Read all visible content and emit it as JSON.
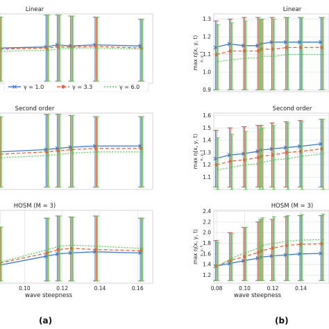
{
  "chart_data": [
    {
      "id": "a-linear",
      "type": "line",
      "title": "Linear",
      "xlim": [
        0.087,
        0.168
      ],
      "ylim": [
        0.7,
        1.35
      ],
      "xticks": [],
      "yticks": [],
      "ylabel": "",
      "xlabel": "",
      "x": [
        0.087,
        0.112,
        0.118,
        0.125,
        0.138,
        0.162
      ],
      "series": [
        {
          "name": "γ = 1.0",
          "color": "#3a78c9",
          "marker": "x",
          "dash": "",
          "values": [
            1.03,
            1.04,
            1.06,
            1.05,
            1.06,
            1.05
          ],
          "err": [
            [
              0.72,
              1.32
            ],
            [
              0.72,
              1.34
            ],
            [
              0.72,
              1.34
            ],
            [
              0.72,
              1.33
            ],
            [
              0.72,
              1.32
            ],
            [
              0.72,
              1.3
            ]
          ]
        },
        {
          "name": "γ = 3.3",
          "color": "#e8603c",
          "marker": "o",
          "dash": "5,3",
          "values": [
            1.02,
            1.03,
            1.04,
            1.04,
            1.045,
            1.03
          ],
          "err": [
            [
              0.72,
              1.32
            ],
            [
              0.72,
              1.34
            ],
            [
              0.72,
              1.34
            ],
            [
              0.72,
              1.33
            ],
            [
              0.72,
              1.32
            ],
            [
              0.72,
              1.3
            ]
          ]
        },
        {
          "name": "γ = 6.0",
          "color": "#5cc85a",
          "marker": "",
          "dash": "2,2",
          "values": [
            1.0,
            1.01,
            1.02,
            1.03,
            1.03,
            1.02
          ],
          "err": [
            [
              0.72,
              1.32
            ],
            [
              0.72,
              1.34
            ],
            [
              0.72,
              1.34
            ],
            [
              0.72,
              1.33
            ],
            [
              0.72,
              1.32
            ],
            [
              0.72,
              1.3
            ]
          ]
        }
      ]
    },
    {
      "id": "a-second",
      "type": "line",
      "title": "Second order",
      "xlim": [
        0.087,
        0.168
      ],
      "ylim": [
        0.7,
        1.35
      ],
      "xticks": [],
      "yticks": [],
      "ylabel": "",
      "xlabel": "",
      "x": [
        0.087,
        0.112,
        0.118,
        0.125,
        0.138,
        0.162
      ],
      "series": [
        {
          "name": "γ = 1.0",
          "color": "#3a78c9",
          "marker": "x",
          "dash": "",
          "values": [
            1.02,
            1.04,
            1.05,
            1.06,
            1.07,
            1.07
          ],
          "err": [
            [
              0.72,
              1.32
            ],
            [
              0.72,
              1.34
            ],
            [
              0.72,
              1.34
            ],
            [
              0.72,
              1.33
            ],
            [
              0.72,
              1.32
            ],
            [
              0.72,
              1.32
            ]
          ]
        },
        {
          "name": "γ = 3.3",
          "color": "#e8603c",
          "marker": "o",
          "dash": "5,3",
          "values": [
            1.0,
            1.02,
            1.03,
            1.04,
            1.05,
            1.05
          ],
          "err": [
            [
              0.72,
              1.32
            ],
            [
              0.72,
              1.34
            ],
            [
              0.72,
              1.34
            ],
            [
              0.72,
              1.33
            ],
            [
              0.72,
              1.32
            ],
            [
              0.72,
              1.32
            ]
          ]
        },
        {
          "name": "γ = 6.0",
          "color": "#5cc85a",
          "marker": "",
          "dash": "2,2",
          "values": [
            0.97,
            0.99,
            1.0,
            1.01,
            1.02,
            1.02
          ],
          "err": [
            [
              0.72,
              1.32
            ],
            [
              0.72,
              1.34
            ],
            [
              0.72,
              1.34
            ],
            [
              0.72,
              1.33
            ],
            [
              0.72,
              1.32
            ],
            [
              0.72,
              1.32
            ]
          ]
        }
      ]
    },
    {
      "id": "a-hosm",
      "type": "line",
      "title": "HOSM (M = 3)",
      "xlim": [
        0.087,
        0.168
      ],
      "ylim": [
        0.7,
        1.35
      ],
      "xticks": [
        0.1,
        0.12,
        0.14,
        0.16
      ],
      "yticks": [],
      "ylabel": "",
      "xlabel": "wave steepness",
      "x": [
        0.087,
        0.112,
        0.118,
        0.125,
        0.138,
        0.162
      ],
      "series": [
        {
          "name": "γ = 1.0",
          "color": "#3a78c9",
          "marker": "x",
          "dash": "",
          "values": [
            0.86,
            0.94,
            0.96,
            0.97,
            0.98,
            0.97
          ],
          "err": [
            [
              0.72,
              1.2
            ],
            [
              0.72,
              1.28
            ],
            [
              0.72,
              1.3
            ],
            [
              0.72,
              1.29
            ],
            [
              0.72,
              1.3
            ],
            [
              0.72,
              1.28
            ]
          ]
        },
        {
          "name": "γ = 3.3",
          "color": "#e8603c",
          "marker": "o",
          "dash": "5,3",
          "values": [
            0.88,
            0.97,
            1.0,
            1.01,
            1.0,
            0.99
          ],
          "err": [
            [
              0.72,
              1.2
            ],
            [
              0.72,
              1.28
            ],
            [
              0.72,
              1.3
            ],
            [
              0.72,
              1.29
            ],
            [
              0.72,
              1.3
            ],
            [
              0.72,
              1.28
            ]
          ]
        },
        {
          "name": "γ = 6.0",
          "color": "#5cc85a",
          "marker": "",
          "dash": "2,2",
          "values": [
            0.89,
            1.0,
            1.03,
            1.04,
            1.03,
            1.01
          ],
          "err": [
            [
              0.72,
              1.2
            ],
            [
              0.72,
              1.28
            ],
            [
              0.72,
              1.3
            ],
            [
              0.72,
              1.29
            ],
            [
              0.72,
              1.3
            ],
            [
              0.72,
              1.28
            ]
          ]
        }
      ]
    },
    {
      "id": "b-linear",
      "type": "line",
      "title": "Linear",
      "xlim": [
        0.078,
        0.16
      ],
      "ylim": [
        0.89,
        1.33
      ],
      "xticks": [],
      "yticks": [
        0.9,
        1.0,
        1.1,
        1.2,
        1.3
      ],
      "ylabel": "max η(x, y, t)",
      "ylabel_sub": "x, y, t",
      "xlabel": "",
      "x": [
        0.08,
        0.09,
        0.1,
        0.11,
        0.112,
        0.12,
        0.13,
        0.14,
        0.155
      ],
      "series": [
        {
          "name": "γ = 1.0",
          "color": "#3a78c9",
          "marker": "x",
          "dash": "",
          "values": [
            1.14,
            1.16,
            1.15,
            1.15,
            1.16,
            1.17,
            1.17,
            1.17,
            1.17
          ],
          "err": [
            [
              0.9,
              1.29
            ],
            [
              0.9,
              1.3
            ],
            [
              0.9,
              1.31
            ],
            [
              0.9,
              1.31
            ],
            [
              0.9,
              1.3
            ],
            [
              0.9,
              1.31
            ],
            [
              0.9,
              1.31
            ],
            [
              0.9,
              1.31
            ],
            [
              0.9,
              1.31
            ]
          ]
        },
        {
          "name": "γ = 3.3",
          "color": "#e8603c",
          "marker": "o",
          "dash": "5,3",
          "values": [
            1.1,
            1.12,
            1.12,
            1.12,
            1.13,
            1.13,
            1.14,
            1.14,
            1.14
          ],
          "err": [
            [
              0.9,
              1.29
            ],
            [
              0.9,
              1.3
            ],
            [
              0.9,
              1.31
            ],
            [
              0.9,
              1.31
            ],
            [
              0.9,
              1.3
            ],
            [
              0.9,
              1.31
            ],
            [
              0.9,
              1.31
            ],
            [
              0.9,
              1.31
            ],
            [
              0.9,
              1.31
            ]
          ]
        },
        {
          "name": "γ = 6.0",
          "color": "#5cc85a",
          "marker": "",
          "dash": "2,2",
          "values": [
            1.06,
            1.07,
            1.08,
            1.08,
            1.09,
            1.09,
            1.1,
            1.1,
            1.1
          ],
          "err": [
            [
              0.9,
              1.27
            ],
            [
              0.9,
              1.28
            ],
            [
              0.9,
              1.29
            ],
            [
              0.9,
              1.3
            ],
            [
              0.9,
              1.3
            ],
            [
              0.9,
              1.3
            ],
            [
              0.9,
              1.31
            ],
            [
              0.9,
              1.31
            ],
            [
              0.9,
              1.31
            ]
          ]
        }
      ]
    },
    {
      "id": "b-second",
      "type": "line",
      "title": "Second order",
      "xlim": [
        0.078,
        0.16
      ],
      "ylim": [
        1.0,
        1.62
      ],
      "xticks": [],
      "yticks": [
        1.1,
        1.2,
        1.3,
        1.4,
        1.5,
        1.6
      ],
      "ylabel": "max η(x, y, t)",
      "ylabel_sub": "x, y, t",
      "xlabel": "",
      "x": [
        0.08,
        0.09,
        0.1,
        0.11,
        0.112,
        0.12,
        0.13,
        0.14,
        0.155
      ],
      "series": [
        {
          "name": "γ = 1.0",
          "color": "#3a78c9",
          "marker": "x",
          "dash": "",
          "values": [
            1.25,
            1.28,
            1.29,
            1.31,
            1.32,
            1.33,
            1.34,
            1.35,
            1.37
          ],
          "err": [
            [
              1.02,
              1.48
            ],
            [
              1.02,
              1.5
            ],
            [
              1.02,
              1.51
            ],
            [
              1.02,
              1.52
            ],
            [
              1.02,
              1.52
            ],
            [
              1.02,
              1.54
            ],
            [
              1.02,
              1.55
            ],
            [
              1.02,
              1.56
            ],
            [
              1.02,
              1.57
            ]
          ]
        },
        {
          "name": "γ = 3.3",
          "color": "#e8603c",
          "marker": "o",
          "dash": "5,3",
          "values": [
            1.2,
            1.23,
            1.24,
            1.26,
            1.27,
            1.28,
            1.3,
            1.31,
            1.33
          ],
          "err": [
            [
              1.02,
              1.48
            ],
            [
              1.02,
              1.5
            ],
            [
              1.02,
              1.51
            ],
            [
              1.02,
              1.52
            ],
            [
              1.02,
              1.52
            ],
            [
              1.02,
              1.54
            ],
            [
              1.02,
              1.55
            ],
            [
              1.02,
              1.56
            ],
            [
              1.02,
              1.57
            ]
          ]
        },
        {
          "name": "γ = 6.0",
          "color": "#5cc85a",
          "marker": "",
          "dash": "2,2",
          "values": [
            1.16,
            1.18,
            1.2,
            1.21,
            1.22,
            1.24,
            1.25,
            1.27,
            1.29
          ],
          "err": [
            [
              1.0,
              1.42
            ],
            [
              1.0,
              1.45
            ],
            [
              1.0,
              1.47
            ],
            [
              1.0,
              1.49
            ],
            [
              1.0,
              1.5
            ],
            [
              1.0,
              1.52
            ],
            [
              1.0,
              1.54
            ],
            [
              1.0,
              1.55
            ],
            [
              1.0,
              1.57
            ]
          ]
        }
      ]
    },
    {
      "id": "b-hosm",
      "type": "line",
      "title": "HOSM (M = 3)",
      "xlim": [
        0.078,
        0.16
      ],
      "ylim": [
        1.05,
        2.42
      ],
      "xticks": [
        0.08,
        0.1,
        0.12,
        0.14
      ],
      "yticks": [
        1.2,
        1.4,
        1.6,
        1.8,
        2.0,
        2.2,
        2.4
      ],
      "ylabel": "max η(x, y, t)",
      "ylabel_sub": "x, y, t",
      "xlabel": "wave steepness",
      "x": [
        0.08,
        0.09,
        0.1,
        0.11,
        0.112,
        0.12,
        0.13,
        0.14,
        0.155
      ],
      "series": [
        {
          "name": "γ = 1.0",
          "color": "#3a78c9",
          "marker": "x",
          "dash": "",
          "values": [
            1.37,
            1.42,
            1.47,
            1.52,
            1.54,
            1.56,
            1.58,
            1.6,
            1.61
          ],
          "err": [
            [
              1.1,
              1.85
            ],
            [
              1.1,
              2.0
            ],
            [
              1.1,
              2.1
            ],
            [
              1.1,
              2.2
            ],
            [
              1.1,
              2.25
            ],
            [
              1.1,
              2.25
            ],
            [
              1.1,
              2.3
            ],
            [
              1.1,
              2.32
            ],
            [
              1.1,
              2.32
            ]
          ]
        },
        {
          "name": "γ = 3.3",
          "color": "#e8603c",
          "marker": "o",
          "dash": "5,3",
          "values": [
            1.37,
            1.48,
            1.55,
            1.63,
            1.66,
            1.71,
            1.76,
            1.78,
            1.79
          ],
          "err": [
            [
              1.1,
              1.85
            ],
            [
              1.1,
              2.0
            ],
            [
              1.1,
              2.1
            ],
            [
              1.1,
              2.2
            ],
            [
              1.1,
              2.25
            ],
            [
              1.1,
              2.25
            ],
            [
              1.1,
              2.3
            ],
            [
              1.1,
              2.32
            ],
            [
              1.1,
              2.32
            ]
          ]
        },
        {
          "name": "γ = 6.0",
          "color": "#5cc85a",
          "marker": "",
          "dash": "2,2",
          "values": [
            1.37,
            1.52,
            1.62,
            1.72,
            1.76,
            1.8,
            1.84,
            1.86,
            1.87
          ],
          "err": [
            [
              1.1,
              1.82
            ],
            [
              1.1,
              1.98
            ],
            [
              1.1,
              2.1
            ],
            [
              1.1,
              2.22
            ],
            [
              1.1,
              2.28
            ],
            [
              1.1,
              2.3
            ],
            [
              1.1,
              2.32
            ],
            [
              1.1,
              2.34
            ],
            [
              1.1,
              2.35
            ]
          ]
        }
      ]
    }
  ],
  "legend": {
    "placement": "bottom",
    "entries": [
      "γ = 1.0",
      "γ = 3.3",
      "γ = 6.0"
    ]
  },
  "panel_labels": {
    "a": "(a)",
    "b": "(b)"
  }
}
